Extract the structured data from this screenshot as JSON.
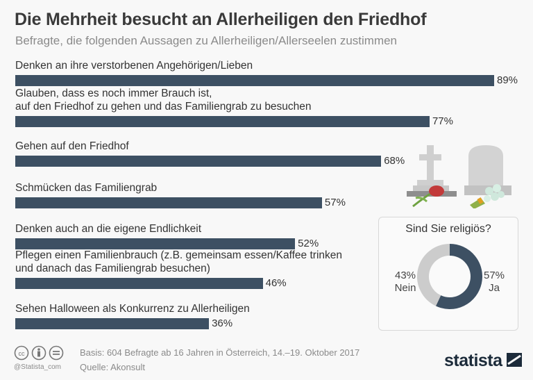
{
  "chart_data": {
    "type": "bar",
    "orientation": "horizontal",
    "title": "Die Mehrheit besucht an Allerheiligen den Friedhof",
    "subtitle": "Befragte, die folgenden Aussagen zu Allerheiligen/Allerseelen zustimmen",
    "categories": [
      "Denken an ihre verstorbenen Angehörigen/Lieben",
      "Glauben, dass es noch immer Brauch ist,\nauf den Friedhof zu gehen und das Familiengrab zu besuchen",
      "Gehen auf den Friedhof",
      "Schmücken das Familiengrab",
      "Denken auch an die eigene Endlichkeit",
      "Pflegen einen Familienbrauch (z.B. gemeinsam essen/Kaffee trinken\nund danach das Familiengrab besuchen)",
      "Sehen Halloween als Konkurrenz zu Allerheiligen"
    ],
    "values": [
      89,
      77,
      68,
      57,
      52,
      46,
      36
    ],
    "value_labels": [
      "89%",
      "77%",
      "68%",
      "57%",
      "52%",
      "46%",
      "36%"
    ],
    "unit": "%",
    "bar_color": "#3d5063",
    "grid": false
  },
  "donut": {
    "type": "pie",
    "title": "Sind Sie religiös?",
    "slices": [
      {
        "label": "Ja",
        "value": 57,
        "value_label": "57%",
        "color": "#3d5063"
      },
      {
        "label": "Nein",
        "value": 43,
        "value_label": "43%",
        "color": "#cccccc"
      }
    ]
  },
  "footer": {
    "basis": "Basis: 604 Befragte ab 16 Jahren in Österreich, 14.–19. Oktober 2017",
    "source": "Quelle: Akonsult",
    "handle": "@Statista_com",
    "logo": "statista"
  },
  "icons": [
    "cc-icon",
    "by-icon",
    "nd-icon",
    "grave-cross-icon",
    "tombstone-icon",
    "tulip-icon",
    "bouquet-icon"
  ]
}
